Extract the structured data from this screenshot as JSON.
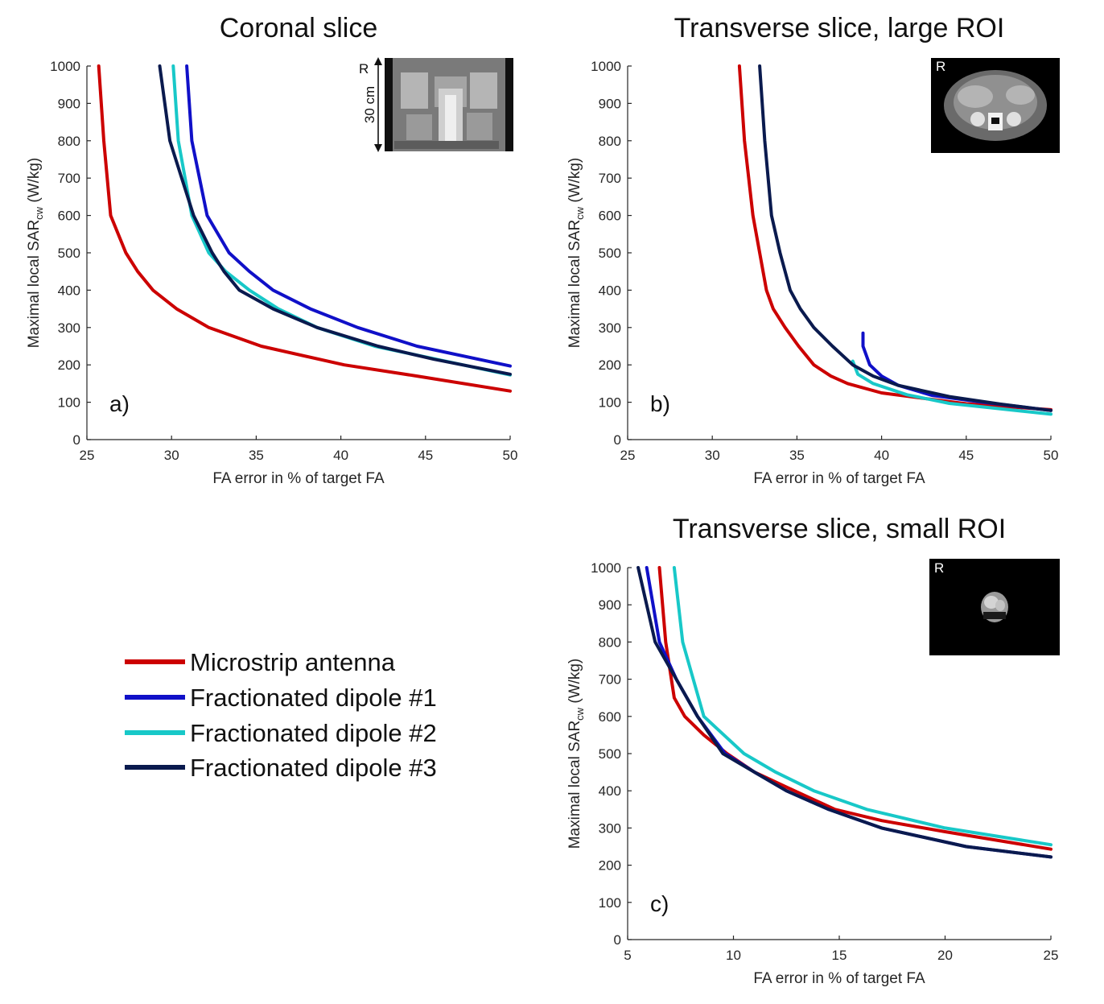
{
  "figure": {
    "legend": [
      {
        "label": "Microstrip antenna",
        "color": "#cc0000"
      },
      {
        "label": "Fractionated dipole #1",
        "color": "#1010c8"
      },
      {
        "label": "Fractionated dipole #2",
        "color": "#18c8c8"
      },
      {
        "label": "Fractionated dipole #3",
        "color": "#0a1a4e"
      }
    ],
    "inset_a": {
      "letter": "R",
      "scale_label": "30 cm"
    },
    "inset_b": {
      "letter": "R"
    },
    "inset_c": {
      "letter": "R"
    }
  },
  "chart_data": [
    {
      "type": "line",
      "title": "Coronal slice",
      "panel_label": "a)",
      "xlabel": "FA error in % of target FA",
      "ylabel_main": "Maximal local SAR",
      "ylabel_sub": "cw",
      "ylabel_unit": " (W/kg)",
      "xlim": [
        25,
        50
      ],
      "ylim": [
        0,
        1000
      ],
      "xticks": [
        25,
        30,
        35,
        40,
        45,
        50
      ],
      "yticks": [
        0,
        100,
        200,
        300,
        400,
        500,
        600,
        700,
        800,
        900,
        1000
      ],
      "series": [
        {
          "name": "Microstrip antenna",
          "color": "#cc0000",
          "points": [
            [
              25.7,
              1000
            ],
            [
              26.0,
              800
            ],
            [
              26.4,
              600
            ],
            [
              27.3,
              500
            ],
            [
              28.0,
              450
            ],
            [
              28.9,
              400
            ],
            [
              30.3,
              350
            ],
            [
              32.2,
              300
            ],
            [
              35.3,
              250
            ],
            [
              40.2,
              200
            ],
            [
              44.5,
              170
            ],
            [
              50.0,
              130
            ]
          ]
        },
        {
          "name": "Fractionated dipole #1",
          "color": "#1010c8",
          "points": [
            [
              30.9,
              1000
            ],
            [
              31.2,
              800
            ],
            [
              32.1,
              600
            ],
            [
              33.4,
              500
            ],
            [
              34.6,
              450
            ],
            [
              36.0,
              400
            ],
            [
              38.2,
              350
            ],
            [
              41.0,
              300
            ],
            [
              44.5,
              250
            ],
            [
              50.0,
              197
            ]
          ]
        },
        {
          "name": "Fractionated dipole #2",
          "color": "#18c8c8",
          "points": [
            [
              30.1,
              1000
            ],
            [
              30.4,
              800
            ],
            [
              31.2,
              600
            ],
            [
              32.2,
              500
            ],
            [
              33.2,
              450
            ],
            [
              34.6,
              400
            ],
            [
              36.3,
              350
            ],
            [
              38.6,
              300
            ],
            [
              42.0,
              250
            ],
            [
              50.0,
              173
            ]
          ]
        },
        {
          "name": "Fractionated dipole #3",
          "color": "#0a1a4e",
          "points": [
            [
              29.3,
              1000
            ],
            [
              29.9,
              800
            ],
            [
              30.6,
              700
            ],
            [
              31.3,
              600
            ],
            [
              32.4,
              500
            ],
            [
              33.1,
              450
            ],
            [
              34.0,
              400
            ],
            [
              36.0,
              350
            ],
            [
              38.6,
              300
            ],
            [
              42.2,
              250
            ],
            [
              45.5,
              215
            ],
            [
              50.0,
              175
            ]
          ]
        }
      ]
    },
    {
      "type": "line",
      "title": "Transverse slice, large ROI",
      "panel_label": "b)",
      "xlabel": "FA error in % of target FA",
      "ylabel_main": "Maximal local SAR",
      "ylabel_sub": "cw",
      "ylabel_unit": " (W/kg)",
      "xlim": [
        25,
        50
      ],
      "ylim": [
        0,
        1000
      ],
      "xticks": [
        25,
        30,
        35,
        40,
        45,
        50
      ],
      "yticks": [
        0,
        100,
        200,
        300,
        400,
        500,
        600,
        700,
        800,
        900,
        1000
      ],
      "series": [
        {
          "name": "Microstrip antenna",
          "color": "#cc0000",
          "points": [
            [
              31.6,
              1000
            ],
            [
              31.9,
              800
            ],
            [
              32.4,
              600
            ],
            [
              32.8,
              500
            ],
            [
              33.2,
              400
            ],
            [
              33.6,
              350
            ],
            [
              34.3,
              300
            ],
            [
              35.1,
              250
            ],
            [
              36.0,
              200
            ],
            [
              37.0,
              170
            ],
            [
              38.0,
              150
            ],
            [
              40.0,
              125
            ],
            [
              45.0,
              96
            ],
            [
              50.0,
              80
            ]
          ]
        },
        {
          "name": "Fractionated dipole #1",
          "color": "#1010c8",
          "points": [
            [
              38.9,
              285
            ],
            [
              38.9,
              250
            ],
            [
              39.3,
              200
            ],
            [
              40.0,
              170
            ],
            [
              41.0,
              145
            ],
            [
              43.0,
              118
            ],
            [
              46.0,
              100
            ],
            [
              50.0,
              78
            ]
          ]
        },
        {
          "name": "Fractionated dipole #2",
          "color": "#18c8c8",
          "points": [
            [
              38.3,
              210
            ],
            [
              38.6,
              175
            ],
            [
              39.5,
              150
            ],
            [
              41.5,
              120
            ],
            [
              44.0,
              97
            ],
            [
              50.0,
              68
            ]
          ]
        },
        {
          "name": "Fractionated dipole #3",
          "color": "#0a1a4e",
          "points": [
            [
              32.8,
              1000
            ],
            [
              33.1,
              800
            ],
            [
              33.5,
              600
            ],
            [
              34.0,
              500
            ],
            [
              34.6,
              400
            ],
            [
              35.2,
              350
            ],
            [
              36.0,
              300
            ],
            [
              37.1,
              250
            ],
            [
              38.3,
              200
            ],
            [
              39.5,
              170
            ],
            [
              41.0,
              145
            ],
            [
              44.0,
              115
            ],
            [
              47.0,
              95
            ],
            [
              50.0,
              78
            ]
          ]
        }
      ]
    },
    {
      "type": "line",
      "title": "Transverse slice, small ROI",
      "panel_label": "c)",
      "xlabel": "FA error in % of target FA",
      "ylabel_main": "Maximal local SAR",
      "ylabel_sub": "cw",
      "ylabel_unit": " (W/kg)",
      "xlim": [
        5,
        25
      ],
      "ylim": [
        0,
        1000
      ],
      "xticks": [
        5,
        10,
        15,
        20,
        25
      ],
      "yticks": [
        0,
        100,
        200,
        300,
        400,
        500,
        600,
        700,
        800,
        900,
        1000
      ],
      "series": [
        {
          "name": "Microstrip antenna",
          "color": "#cc0000",
          "points": [
            [
              6.5,
              1000
            ],
            [
              6.8,
              800
            ],
            [
              7.2,
              650
            ],
            [
              7.7,
              600
            ],
            [
              8.6,
              550
            ],
            [
              9.7,
              500
            ],
            [
              11.0,
              450
            ],
            [
              12.5,
              410
            ],
            [
              14.8,
              350
            ],
            [
              17.0,
              320
            ],
            [
              20.0,
              290
            ],
            [
              25.0,
              243
            ]
          ]
        },
        {
          "name": "Fractionated dipole #1",
          "color": "#1010c8",
          "points": [
            [
              5.9,
              1000
            ],
            [
              6.5,
              800
            ],
            [
              7.3,
              700
            ],
            [
              8.3,
              600
            ],
            [
              9.6,
              500
            ],
            [
              11.0,
              450
            ],
            [
              12.5,
              400
            ],
            [
              14.5,
              350
            ],
            [
              17.0,
              300
            ],
            [
              21.0,
              250
            ],
            [
              25.0,
              222
            ]
          ]
        },
        {
          "name": "Fractionated dipole #2",
          "color": "#18c8c8",
          "points": [
            [
              7.2,
              1000
            ],
            [
              7.6,
              800
            ],
            [
              8.6,
              600
            ],
            [
              10.5,
              500
            ],
            [
              12.0,
              450
            ],
            [
              13.8,
              400
            ],
            [
              16.3,
              350
            ],
            [
              20.0,
              300
            ],
            [
              25.0,
              255
            ]
          ]
        },
        {
          "name": "Fractionated dipole #3",
          "color": "#0a1a4e",
          "points": [
            [
              5.5,
              1000
            ],
            [
              6.3,
              800
            ],
            [
              7.3,
              700
            ],
            [
              8.3,
              600
            ],
            [
              9.5,
              500
            ],
            [
              11.0,
              450
            ],
            [
              12.5,
              400
            ],
            [
              14.5,
              350
            ],
            [
              17.0,
              300
            ],
            [
              21.0,
              250
            ],
            [
              25.0,
              222
            ]
          ]
        }
      ]
    }
  ]
}
